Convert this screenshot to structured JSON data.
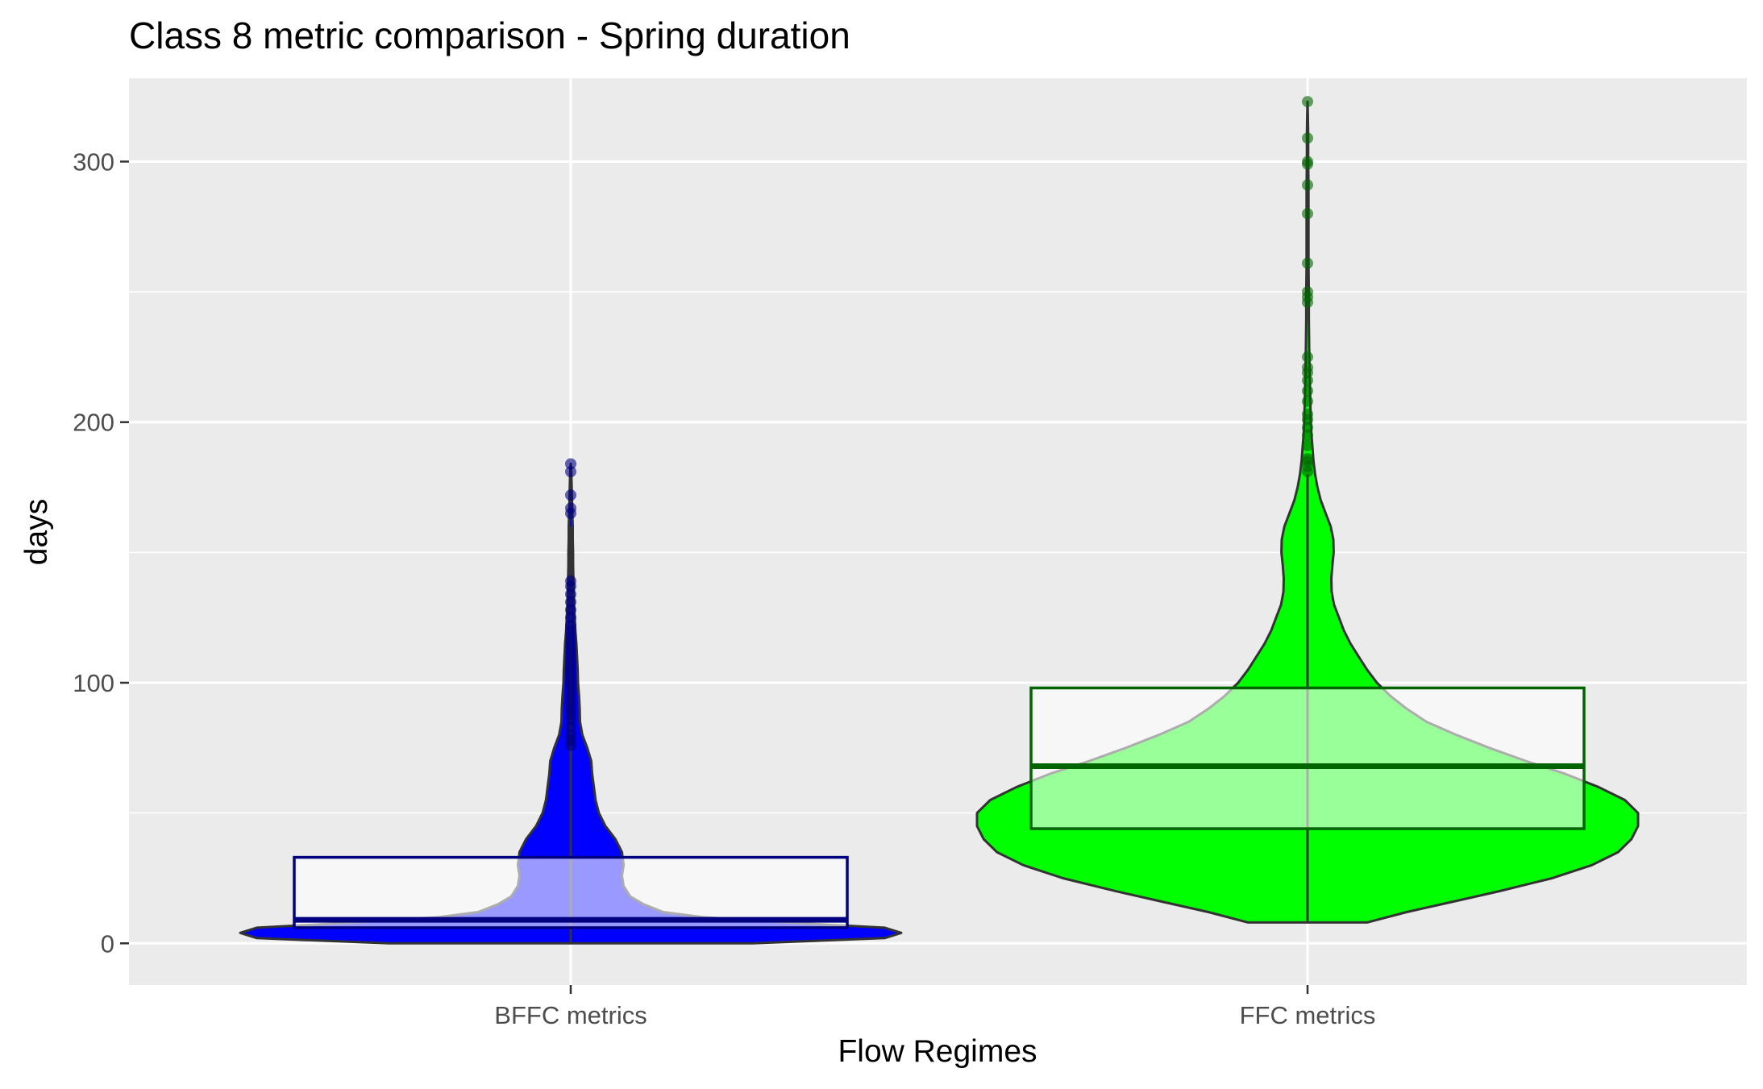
{
  "chart_data": {
    "type": "violin",
    "title": "Class 8 metric comparison - Spring duration",
    "xlabel": "Flow Regimes",
    "ylabel": "days",
    "ylim": [
      -16,
      332
    ],
    "yticks": [
      0,
      100,
      200,
      300
    ],
    "grid": true,
    "legend": "none",
    "categories": [
      "BFFC metrics",
      "FFC metrics"
    ],
    "series": [
      {
        "category": "BFFC metrics",
        "fill_color": "#0000ff",
        "box_color": "#000080",
        "box": {
          "q1": 6,
          "median": 9,
          "q3": 33,
          "whisker_low": 0,
          "whisker_high": 160
        },
        "outliers": [
          165,
          167,
          172,
          181,
          184,
          76,
          78,
          80,
          83,
          86,
          88,
          90,
          92,
          94,
          96,
          98,
          100,
          102,
          104,
          106,
          108,
          110,
          112,
          114,
          116,
          118,
          120,
          122,
          125,
          128,
          131,
          134,
          137,
          139
        ],
        "density": [
          [
            0,
            0.55
          ],
          [
            2,
            0.95
          ],
          [
            4,
            1.0
          ],
          [
            6,
            0.95
          ],
          [
            8,
            0.65
          ],
          [
            10,
            0.4
          ],
          [
            12,
            0.28
          ],
          [
            15,
            0.22
          ],
          [
            18,
            0.18
          ],
          [
            22,
            0.16
          ],
          [
            26,
            0.155
          ],
          [
            30,
            0.16
          ],
          [
            35,
            0.155
          ],
          [
            40,
            0.135
          ],
          [
            45,
            0.105
          ],
          [
            50,
            0.085
          ],
          [
            55,
            0.075
          ],
          [
            60,
            0.07
          ],
          [
            65,
            0.065
          ],
          [
            70,
            0.062
          ],
          [
            75,
            0.05
          ],
          [
            80,
            0.035
          ],
          [
            85,
            0.028
          ],
          [
            90,
            0.027
          ],
          [
            95,
            0.025
          ],
          [
            100,
            0.022
          ],
          [
            105,
            0.021
          ],
          [
            110,
            0.019
          ],
          [
            115,
            0.017
          ],
          [
            120,
            0.014
          ],
          [
            125,
            0.012
          ],
          [
            130,
            0.01
          ],
          [
            135,
            0.009
          ],
          [
            140,
            0.008
          ],
          [
            145,
            0.007
          ],
          [
            150,
            0.007
          ],
          [
            155,
            0.006
          ],
          [
            160,
            0.006
          ],
          [
            165,
            0.005
          ],
          [
            170,
            0.004
          ],
          [
            175,
            0.003
          ],
          [
            180,
            0.002
          ],
          [
            184,
            0
          ]
        ]
      },
      {
        "category": "FFC metrics",
        "fill_color": "#00ff00",
        "box_color": "#006400",
        "box": {
          "q1": 44,
          "median": 68,
          "q3": 98,
          "whisker_low": 8,
          "whisker_high": 180
        },
        "outliers": [
          181,
          183,
          185,
          186,
          191,
          195,
          198,
          201,
          203,
          208,
          212,
          216,
          219,
          221,
          225,
          246,
          248,
          250,
          261,
          280,
          291,
          299,
          300,
          309,
          323
        ],
        "density": [
          [
            8,
            0.18
          ],
          [
            12,
            0.3
          ],
          [
            16,
            0.44
          ],
          [
            20,
            0.58
          ],
          [
            25,
            0.74
          ],
          [
            30,
            0.86
          ],
          [
            35,
            0.94
          ],
          [
            40,
            0.98
          ],
          [
            45,
            1.0
          ],
          [
            50,
            1.0
          ],
          [
            55,
            0.96
          ],
          [
            60,
            0.88
          ],
          [
            65,
            0.78
          ],
          [
            70,
            0.66
          ],
          [
            75,
            0.55
          ],
          [
            80,
            0.45
          ],
          [
            85,
            0.36
          ],
          [
            90,
            0.3
          ],
          [
            95,
            0.25
          ],
          [
            100,
            0.21
          ],
          [
            105,
            0.18
          ],
          [
            110,
            0.155
          ],
          [
            115,
            0.13
          ],
          [
            120,
            0.11
          ],
          [
            125,
            0.095
          ],
          [
            130,
            0.08
          ],
          [
            135,
            0.073
          ],
          [
            140,
            0.072
          ],
          [
            145,
            0.075
          ],
          [
            150,
            0.079
          ],
          [
            155,
            0.078
          ],
          [
            160,
            0.07
          ],
          [
            165,
            0.055
          ],
          [
            170,
            0.04
          ],
          [
            175,
            0.03
          ],
          [
            180,
            0.023
          ],
          [
            185,
            0.018
          ],
          [
            190,
            0.015
          ],
          [
            195,
            0.012
          ],
          [
            200,
            0.01
          ],
          [
            210,
            0.008
          ],
          [
            220,
            0.006
          ],
          [
            230,
            0.005
          ],
          [
            240,
            0.004
          ],
          [
            250,
            0.004
          ],
          [
            260,
            0.003
          ],
          [
            270,
            0.003
          ],
          [
            280,
            0.003
          ],
          [
            290,
            0.003
          ],
          [
            300,
            0.002
          ],
          [
            310,
            0.002
          ],
          [
            318,
            0.001
          ],
          [
            323,
            0
          ]
        ]
      }
    ]
  }
}
